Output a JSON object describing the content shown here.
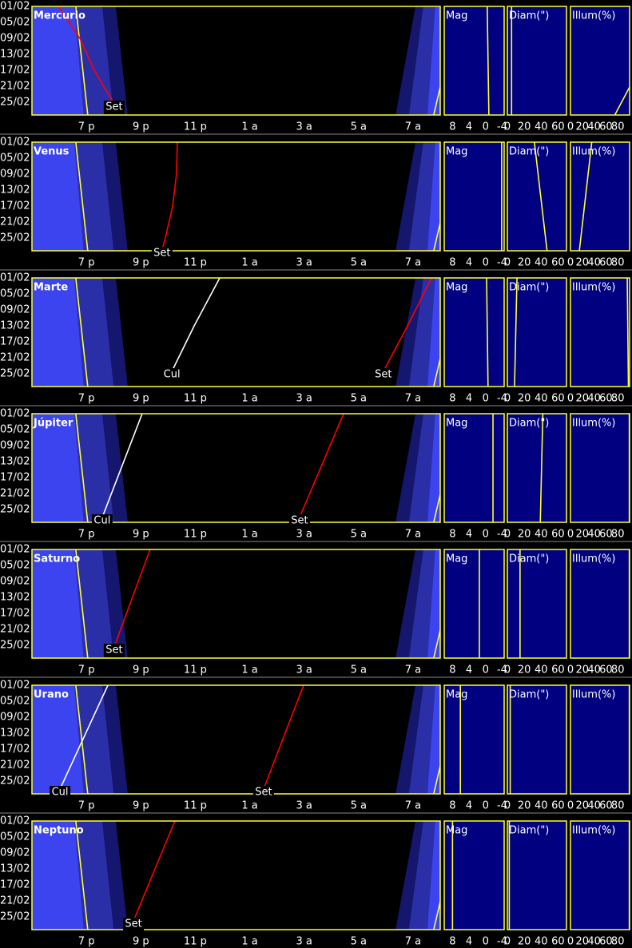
{
  "chart_data": {
    "type": "visibility",
    "xlim": [
      5,
      20
    ],
    "ylim": [
      1,
      28.2
    ],
    "xticks": [
      {
        "value": 7,
        "label": "7 p"
      },
      {
        "value": 9,
        "label": "9 p"
      },
      {
        "value": 11,
        "label": "11 p"
      },
      {
        "value": 13,
        "label": "1 a"
      },
      {
        "value": 15,
        "label": "3 a"
      },
      {
        "value": 17,
        "label": "5 a"
      },
      {
        "value": 19,
        "label": "7 a"
      }
    ],
    "yticks": [
      {
        "value": 1,
        "label": "01/02"
      },
      {
        "value": 5,
        "label": "05/02"
      },
      {
        "value": 9,
        "label": "09/02"
      },
      {
        "value": 13,
        "label": "13/02"
      },
      {
        "value": 17,
        "label": "17/02"
      },
      {
        "value": 21,
        "label": "21/02"
      },
      {
        "value": 25,
        "label": "25/02"
      }
    ],
    "twilight": {
      "days": [
        1,
        28.2
      ],
      "evening": [
        {
          "color": "#3b44ee",
          "end": [
            6.55,
            6.9
          ]
        },
        {
          "color": "#2a2fa8",
          "end": [
            7.58,
            8.0
          ]
        },
        {
          "color": "#15166e",
          "end": [
            8.08,
            8.52
          ]
        }
      ],
      "morning": [
        {
          "color": "#15166e",
          "start": [
            19.09,
            18.36
          ]
        },
        {
          "color": "#2a2fa8",
          "start": [
            19.38,
            18.85
          ]
        },
        {
          "color": "#3b44ee",
          "start": [
            19.82,
            19.53
          ]
        }
      ],
      "sunset": {
        "color": "#ffff33",
        "days": [
          1,
          28.2
        ],
        "values": [
          6.61,
          7.05
        ]
      },
      "sunrise": {
        "color": "#ffff33",
        "days": [
          21.2,
          28.2
        ],
        "values": [
          20,
          19.76
        ]
      }
    },
    "side": [
      {
        "key": "mag",
        "title": "Mag",
        "xlim": [
          10,
          -4.5
        ],
        "xticks": [
          8,
          4,
          0,
          -4
        ]
      },
      {
        "key": "diam",
        "title": "Diam(\")",
        "xlim": [
          0,
          70
        ],
        "xticks": [
          0,
          20,
          40,
          60
        ]
      },
      {
        "key": "illum",
        "title": "Illum(%)",
        "xlim": [
          0,
          100
        ],
        "xticks": [
          0,
          20,
          40,
          60,
          80
        ]
      }
    ],
    "planets": [
      {
        "name": "Mercurio",
        "events": [
          {
            "name": "Set",
            "color": "#ff0000",
            "days": [
              1,
              9,
              17,
              25.4
            ],
            "values": [
              5.97,
              6.76,
              7.29,
              8.02
            ]
          }
        ],
        "mag": {
          "days": [
            1,
            28.2
          ],
          "values": [
            -0.4,
            -0.8
          ]
        },
        "diam": {
          "days": [
            1,
            28.2
          ],
          "values": [
            5,
            5
          ]
        },
        "illum": {
          "days": [
            21.2,
            28.2
          ],
          "values": [
            100,
            75
          ]
        }
      },
      {
        "name": "Venus",
        "events": [
          {
            "name": "Set",
            "color": "#ff0000",
            "days": [
              1,
              9,
              17,
              25,
              28
            ],
            "values": [
              10.34,
              10.31,
              10.17,
              9.9,
              9.78
            ]
          }
        ],
        "mag": {
          "days": [
            1,
            28.2
          ],
          "values": [
            -3.9,
            -3.9
          ]
        },
        "diam": {
          "days": [
            1,
            28.2
          ],
          "values": [
            32,
            47
          ]
        },
        "illum": {
          "days": [
            1,
            28.2
          ],
          "values": [
            36,
            15
          ]
        }
      },
      {
        "name": "Marte",
        "events": [
          {
            "name": "Cul",
            "color": "#ffffff",
            "days": [
              1,
              13,
              24.4
            ],
            "values": [
              11.9,
              10.96,
              10.14
            ]
          },
          {
            "name": "Set",
            "color": "#ff0000",
            "days": [
              1,
              13,
              24.4
            ],
            "values": [
              19.68,
              18.8,
              17.91
            ]
          }
        ],
        "mag": {
          "days": [
            1,
            28.2
          ],
          "values": [
            -0.25,
            -0.6
          ]
        },
        "diam": {
          "days": [
            1,
            28.2
          ],
          "values": [
            11.4,
            8.5
          ]
        },
        "illum": {
          "days": [
            1,
            28.2
          ],
          "values": [
            96,
            98
          ]
        }
      },
      {
        "name": "Júpiter",
        "events": [
          {
            "name": "Cul",
            "color": "#ffffff",
            "days": [
              1,
              27
            ],
            "values": [
              9.05,
              7.58
            ]
          },
          {
            "name": "Set",
            "color": "#ff0000",
            "days": [
              1,
              27
            ],
            "values": [
              16.45,
              14.83
            ]
          }
        ],
        "mag": {
          "days": [
            1,
            28.2
          ],
          "values": [
            -1.8,
            -1.8
          ]
        },
        "diam": {
          "days": [
            1,
            28.2
          ],
          "values": [
            42,
            39
          ]
        },
        "illum": {
          "days": [
            1,
            28.2
          ],
          "values": [
            99.5,
            99.5
          ]
        }
      },
      {
        "name": "Saturno",
        "events": [
          {
            "name": "Set",
            "color": "#ff0000",
            "days": [
              1,
              25.4
            ],
            "values": [
              9.34,
              8.02
            ]
          }
        ],
        "mag": {
          "days": [
            1,
            28.2
          ],
          "values": [
            1.5,
            1.5
          ]
        },
        "diam": {
          "days": [
            1,
            28.2
          ],
          "values": [
            15,
            15
          ]
        },
        "illum": {
          "days": [
            1,
            28.2
          ],
          "values": [
            99.5,
            99.5
          ]
        }
      },
      {
        "name": "Urano",
        "events": [
          {
            "name": "Cul",
            "color": "#ffffff",
            "days": [
              1,
              27
            ],
            "values": [
              7.79,
              6.03
            ]
          },
          {
            "name": "Set",
            "color": "#ff0000",
            "days": [
              1,
              27
            ],
            "values": [
              14.98,
              13.51
            ]
          }
        ],
        "mag": {
          "days": [
            1,
            28.2
          ],
          "values": [
            6.1,
            6.1
          ]
        },
        "diam": {
          "days": [
            1,
            28.2
          ],
          "values": [
            3.4,
            3.4
          ]
        },
        "illum": {
          "days": [
            1,
            28.2
          ],
          "values": [
            99.5,
            99.5
          ]
        }
      },
      {
        "name": "Neptuno",
        "events": [
          {
            "name": "Set",
            "color": "#ff0000",
            "days": [
              1,
              26
            ],
            "values": [
              10.25,
              8.73
            ]
          }
        ],
        "mag": {
          "days": [
            1,
            28.2
          ],
          "values": [
            8,
            8
          ]
        },
        "diam": {
          "days": [
            1,
            28.2
          ],
          "values": [
            2.3,
            2.3
          ]
        },
        "illum": {
          "days": [
            1,
            28.2
          ],
          "values": [
            99.5,
            99.5
          ]
        }
      }
    ]
  }
}
